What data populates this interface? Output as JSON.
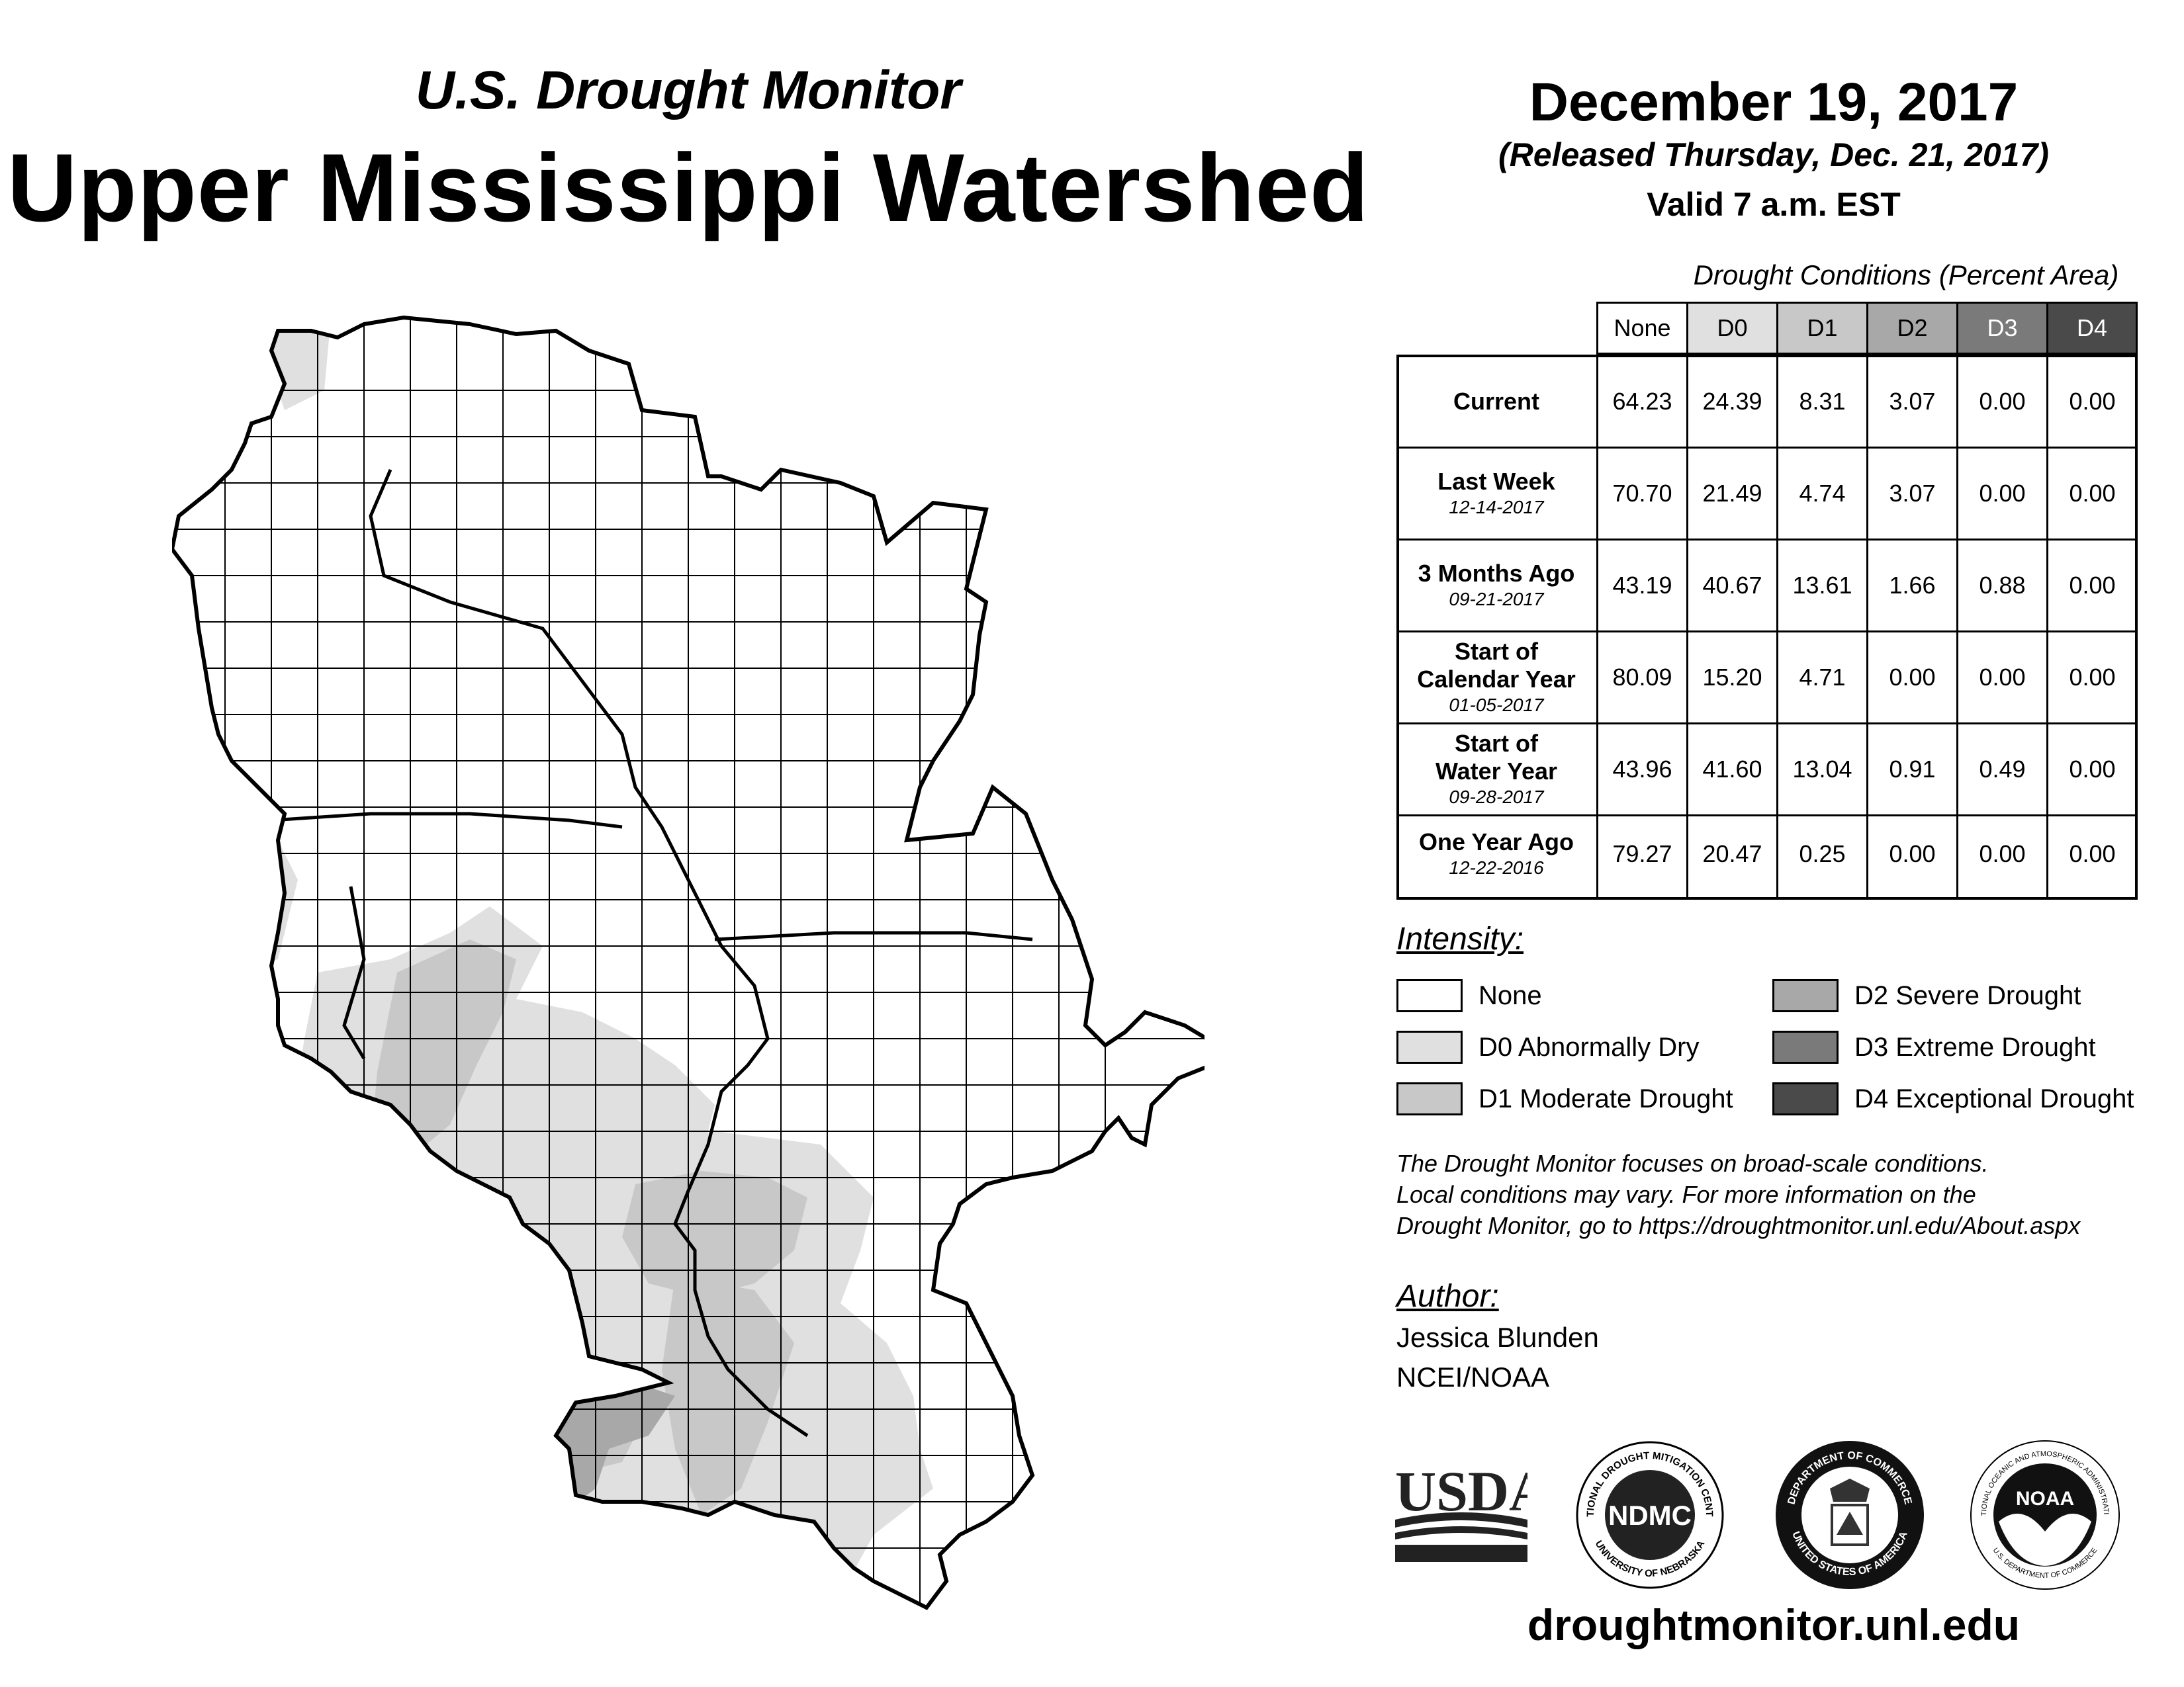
{
  "header": {
    "super_title": "U.S. Drought Monitor",
    "title": "Upper Mississippi Watershed",
    "date": "December 19, 2017",
    "released": "(Released Thursday, Dec. 21, 2017)",
    "valid": "Valid 7 a.m. EST"
  },
  "table": {
    "caption": "Drought Conditions (Percent Area)",
    "columns": [
      "None",
      "D0",
      "D1",
      "D2",
      "D3",
      "D4"
    ],
    "rows": [
      {
        "label": "Current",
        "date": "",
        "values": [
          "64.23",
          "24.39",
          "8.31",
          "3.07",
          "0.00",
          "0.00"
        ]
      },
      {
        "label": "Last Week",
        "date": "12-14-2017",
        "values": [
          "70.70",
          "21.49",
          "4.74",
          "3.07",
          "0.00",
          "0.00"
        ]
      },
      {
        "label": "3 Months Ago",
        "date": "09-21-2017",
        "values": [
          "43.19",
          "40.67",
          "13.61",
          "1.66",
          "0.88",
          "0.00"
        ]
      },
      {
        "label": "Start of Calendar Year",
        "date": "01-05-2017",
        "values": [
          "80.09",
          "15.20",
          "4.71",
          "0.00",
          "0.00",
          "0.00"
        ]
      },
      {
        "label": "Start of Water Year",
        "date": "09-28-2017",
        "values": [
          "43.96",
          "41.60",
          "13.04",
          "0.91",
          "0.49",
          "0.00"
        ]
      },
      {
        "label": "One Year Ago",
        "date": "12-22-2016",
        "values": [
          "79.27",
          "20.47",
          "0.25",
          "0.00",
          "0.00",
          "0.00"
        ]
      }
    ]
  },
  "legend": {
    "title": "Intensity:",
    "items": [
      {
        "label": "None",
        "color": "#ffffff"
      },
      {
        "label": "D0 Abnormally Dry",
        "color": "#e0e0e0"
      },
      {
        "label": "D1 Moderate Drought",
        "color": "#c8c8c8"
      },
      {
        "label": "D2 Severe Drought",
        "color": "#a8a8a8"
      },
      {
        "label": "D3 Extreme Drought",
        "color": "#7a7a7a"
      },
      {
        "label": "D4 Exceptional Drought",
        "color": "#4a4a4a"
      }
    ]
  },
  "note": {
    "line1": "The Drought Monitor focuses on broad-scale conditions.",
    "line2": "Local conditions may vary. For more information on the",
    "line3": "Drought Monitor, go to https://droughtmonitor.unl.edu/About.aspx"
  },
  "author": {
    "title": "Author:",
    "name": "Jessica Blunden",
    "org": "NCEI/NOAA"
  },
  "logos": {
    "usda": "USDA",
    "ndmc": "NDMC",
    "ndmc_ring_top": "NATIONAL DROUGHT MITIGATION CENTER",
    "ndmc_ring_bottom": "UNIVERSITY OF NEBRASKA",
    "doc_ring_top": "DEPARTMENT OF COMMERCE",
    "doc_ring_bottom": "UNITED STATES OF AMERICA",
    "noaa": "NOAA",
    "noaa_ring_top": "NATIONAL OCEANIC AND ATMOSPHERIC ADMINISTRATION",
    "noaa_ring_bottom": "U.S. DEPARTMENT OF COMMERCE"
  },
  "footer": {
    "url": "droughtmonitor.unl.edu"
  }
}
